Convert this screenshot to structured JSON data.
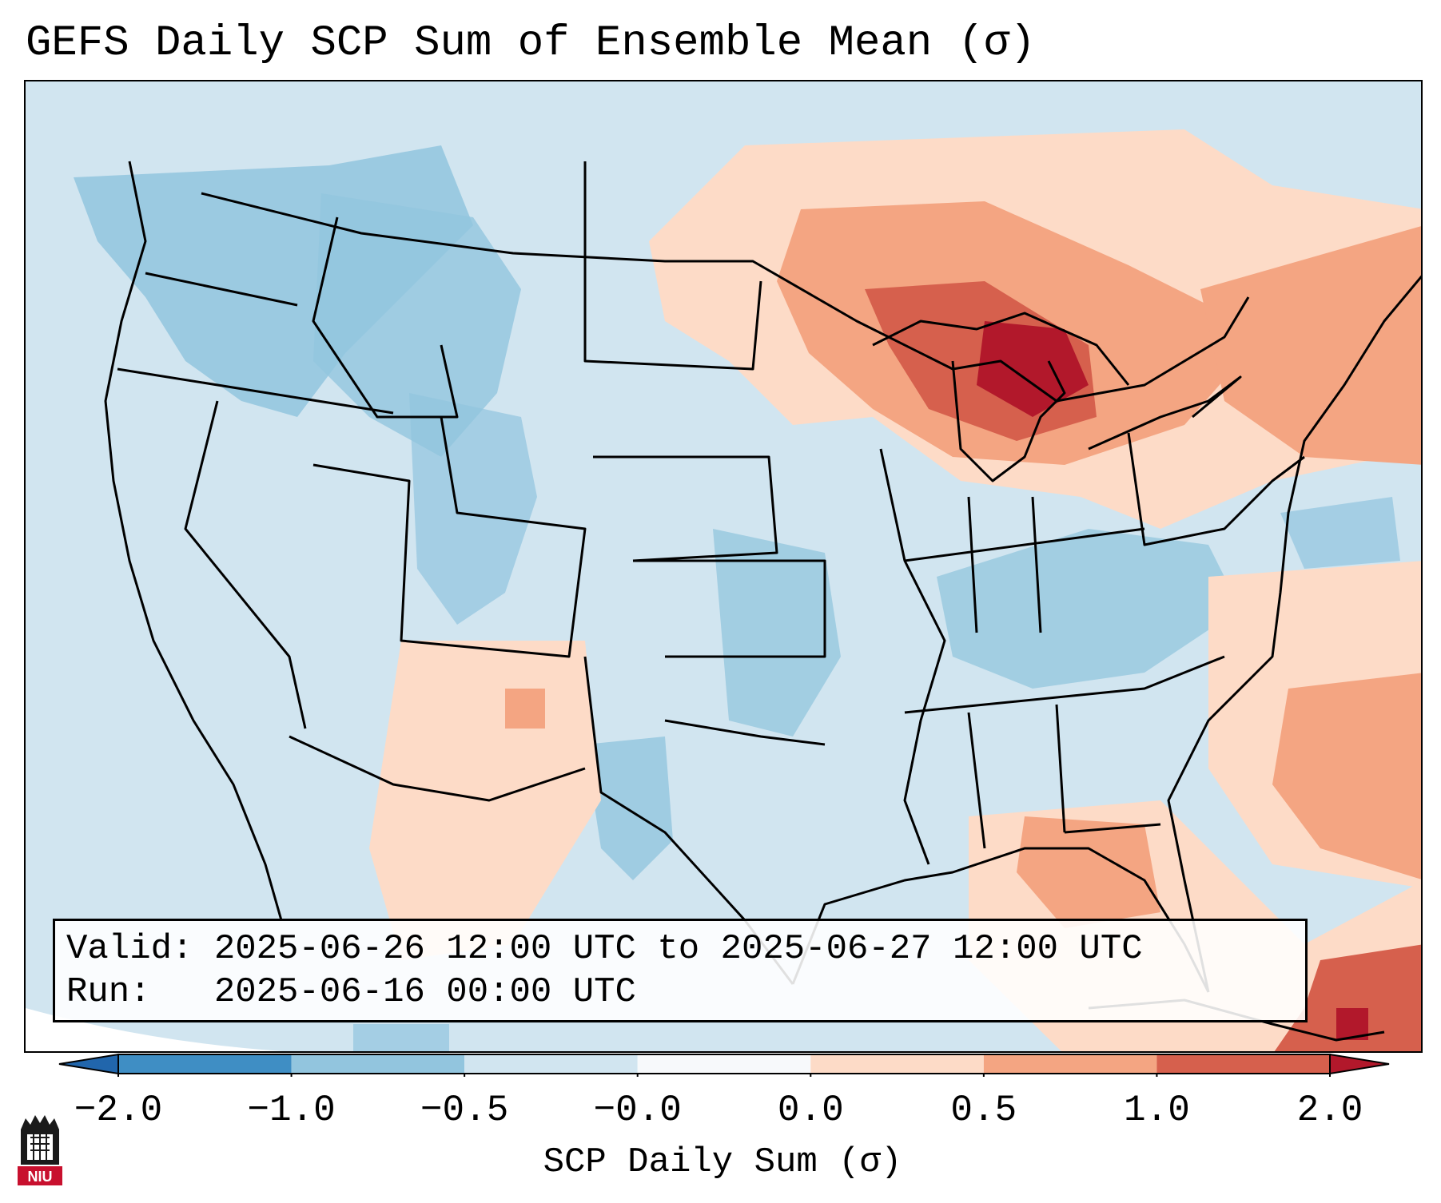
{
  "title": "GEFS Daily SCP Sum of Ensemble Mean (σ)",
  "info": {
    "valid_label": "Valid:",
    "valid_value": "2025-06-26 12:00 UTC to 2025-06-27 12:00 UTC",
    "run_label": "Run:",
    "run_value": "2025-06-16 00:00 UTC"
  },
  "colorbar": {
    "label": "SCP Daily Sum (σ)",
    "ticks": [
      "−2.0",
      "−1.0",
      "−0.5",
      "−0.0",
      "0.0",
      "0.5",
      "1.0",
      "2.0"
    ],
    "bin_colors": [
      "#3f8ec4",
      "#92c5de",
      "#d1e5f0",
      "#f7f9fb",
      "#fddbc7",
      "#f4a582",
      "#d6604d"
    ],
    "under_color": "#2166ac",
    "over_color": "#b2182b"
  },
  "logo": {
    "text": "NIU"
  }
}
